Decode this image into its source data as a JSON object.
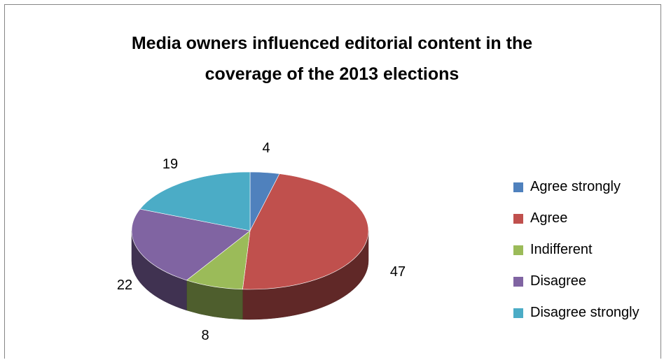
{
  "chart_data": {
    "type": "pie",
    "title_lines": [
      "Media owners influenced editorial content in the",
      "coverage of the 2013 elections"
    ],
    "categories": [
      "Agree strongly",
      "Agree",
      "Indifferent",
      "Disagree",
      "Disagree strongly"
    ],
    "values": [
      4,
      47,
      8,
      "22",
      19
    ],
    "colors": [
      "#4F81BD",
      "#C0504D",
      "#9BBB59",
      "#8064A2",
      "#4BACC6"
    ],
    "label_texts": [
      "4",
      "47",
      "8",
      "22",
      "19"
    ],
    "legend_position": "right",
    "style": "3d"
  }
}
